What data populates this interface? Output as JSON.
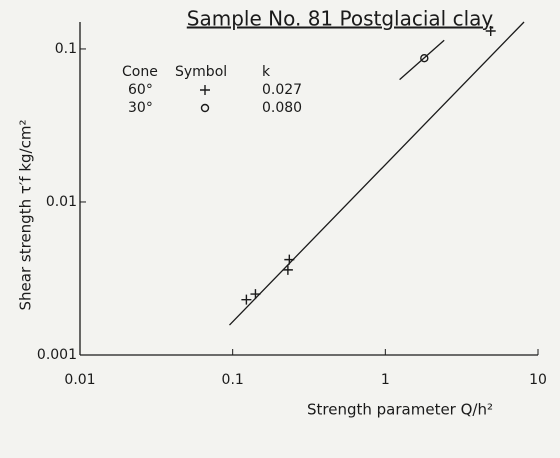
{
  "chart_data": {
    "type": "scatter",
    "title": "Sample No. 81 Postglacial clay",
    "xlabel": "Strength parameter Q/h²",
    "ylabel": "Shear strength τ′f kg/cm²",
    "log_x": true,
    "log_y": true,
    "xlim": [
      0.01,
      10
    ],
    "ylim": [
      0.001,
      0.15
    ],
    "xticks": [
      0.01,
      0.1,
      1,
      10
    ],
    "yticks": [
      0.001,
      0.01,
      0.1
    ],
    "legend_headers": [
      "Cone",
      "Symbol",
      "k"
    ],
    "color": "#1a1a1a",
    "series": [
      {
        "name": "60°",
        "marker": "cross",
        "k": "0.027",
        "x": [
          0.123,
          0.141,
          0.23,
          0.235,
          4.9
        ],
        "values": [
          0.0023,
          0.0025,
          0.0036,
          0.0042,
          0.131
        ],
        "fit": {
          "x": [
            0.0953,
            8.1
          ],
          "values": [
            0.00157,
            0.15
          ]
        }
      },
      {
        "name": "30°",
        "marker": "circle",
        "k": "0.080",
        "x": [
          1.8
        ],
        "values": [
          0.087
        ],
        "fit": {
          "x": [
            1.24,
            2.43
          ],
          "values": [
            0.063,
            0.114
          ]
        }
      }
    ]
  }
}
